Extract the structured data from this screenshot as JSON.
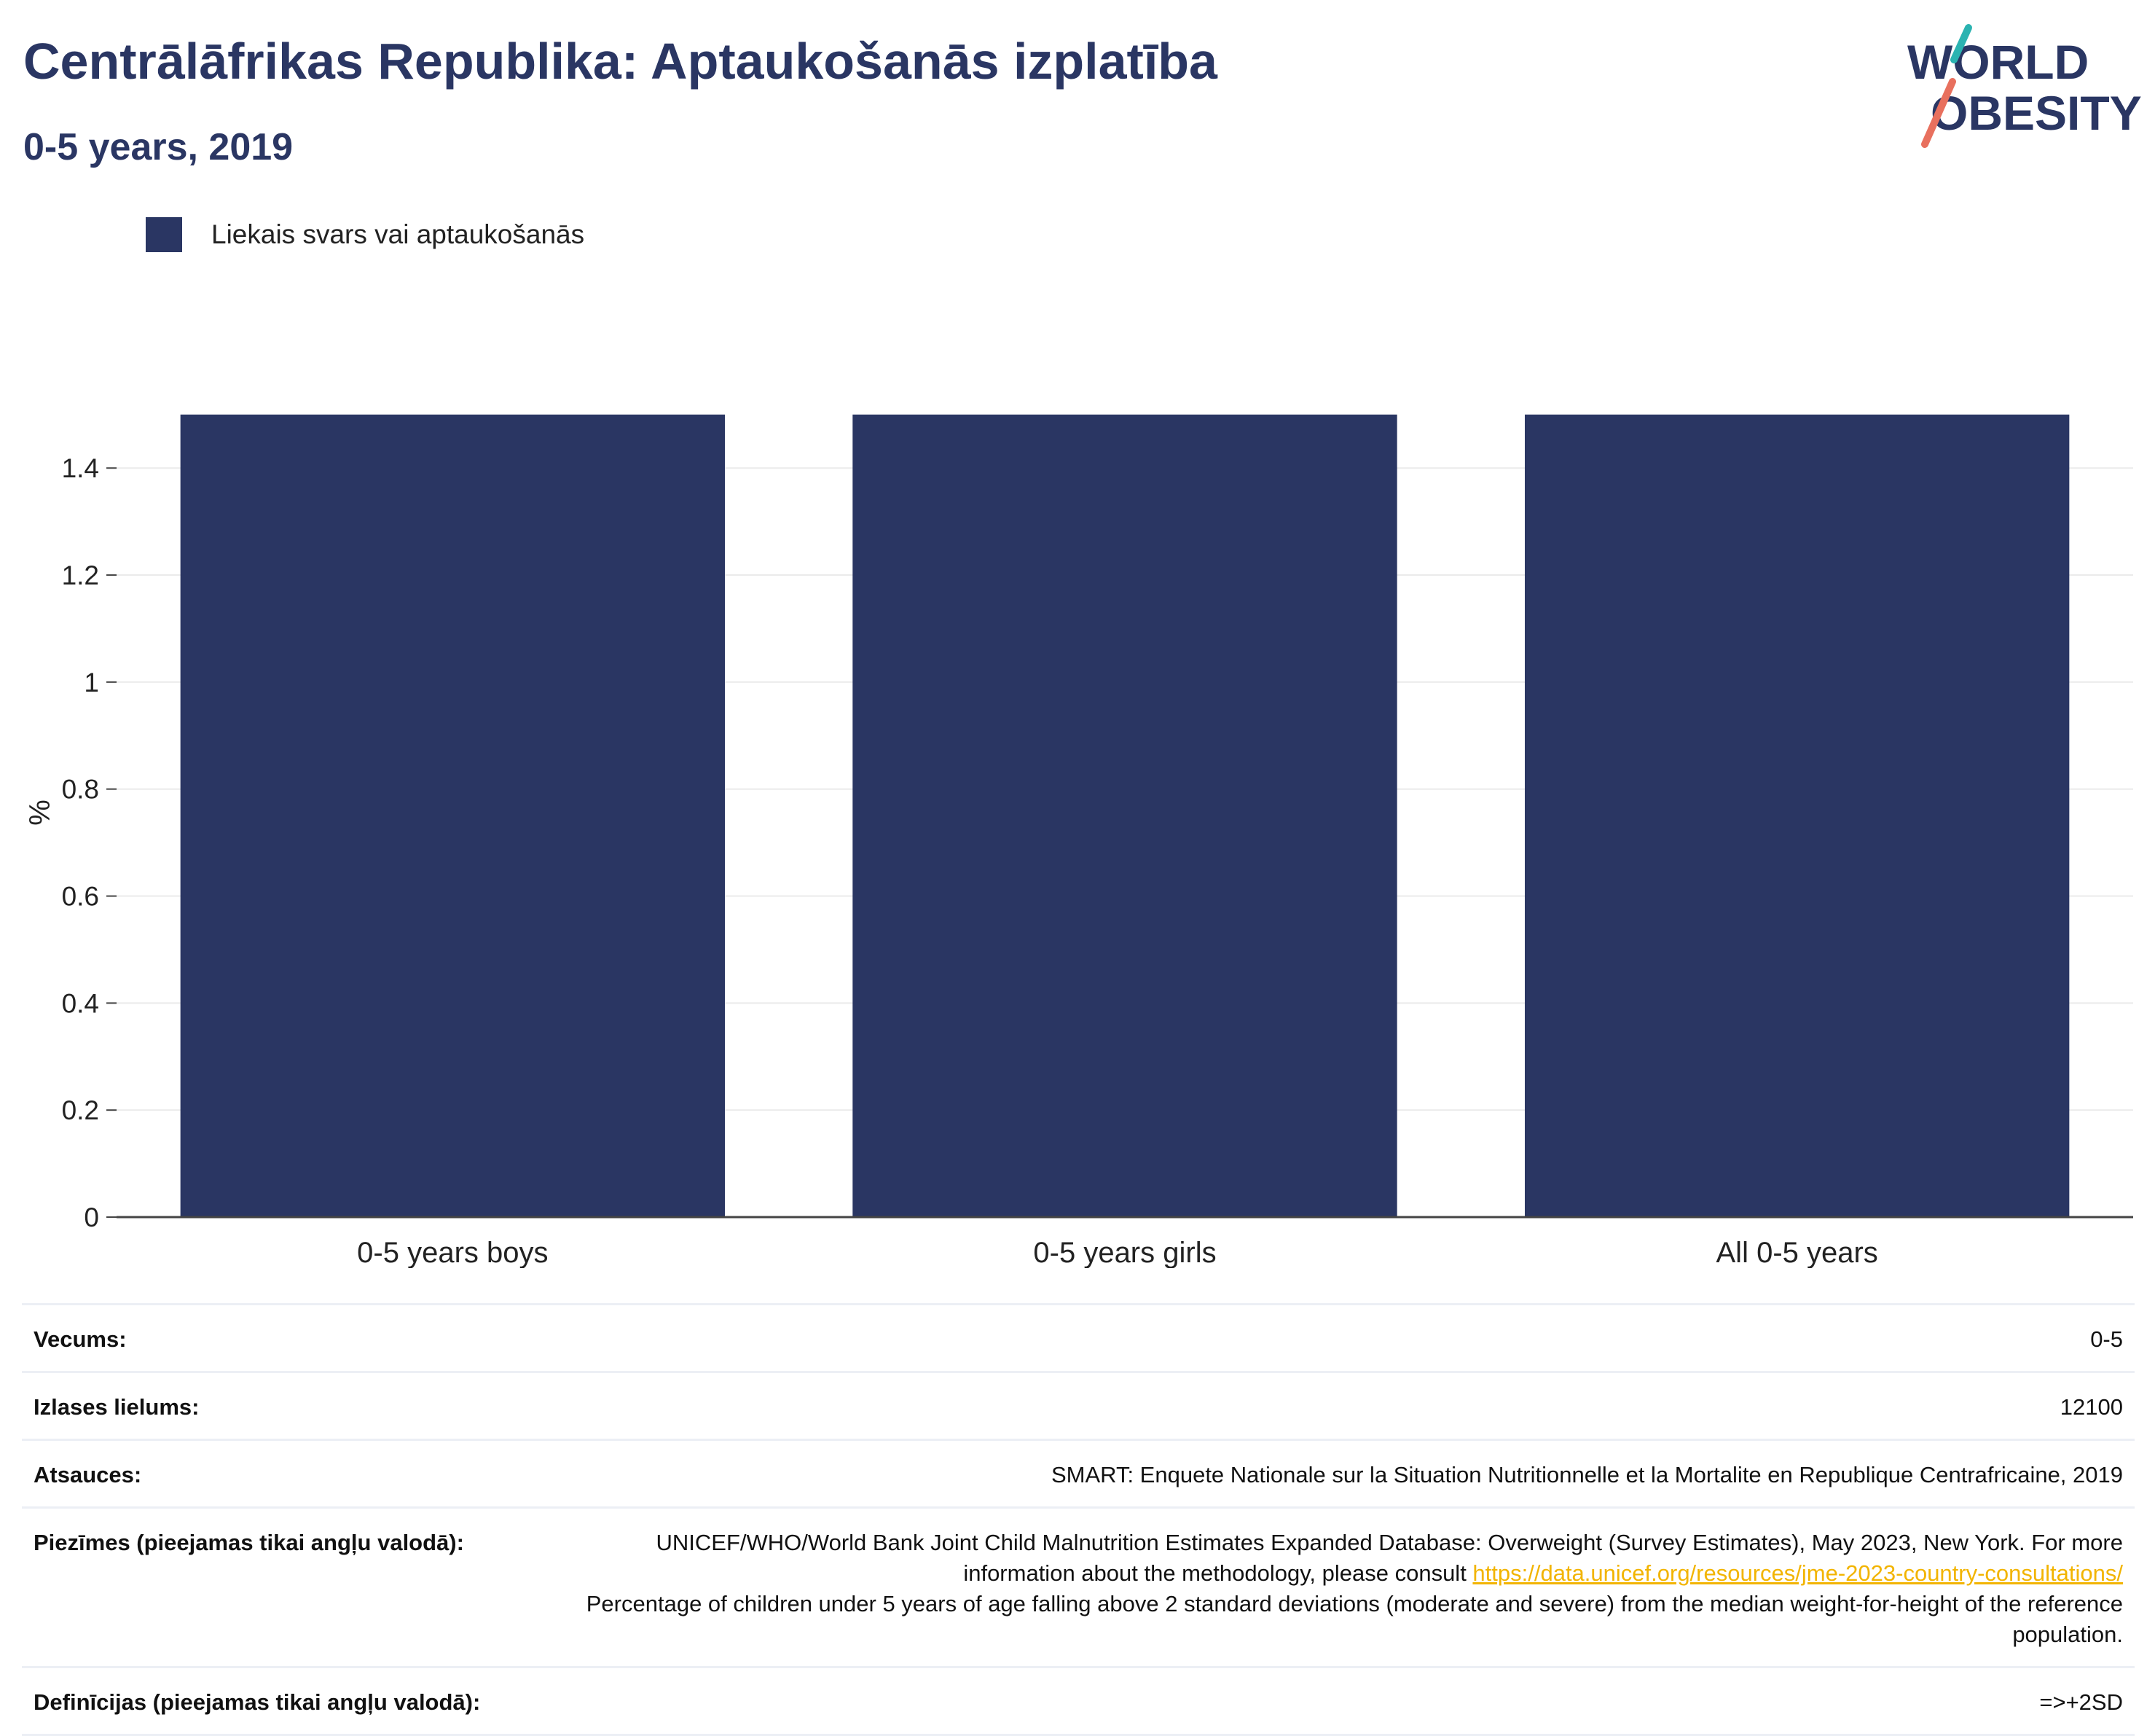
{
  "header": {
    "title": "Centrālāfrikas Republika: Aptaukošanās izplatība",
    "subtitle": "0-5 years, 2019"
  },
  "logo": {
    "line1": "WORLD",
    "line2": "OBESITY",
    "colors": {
      "text": "#2a3663",
      "teal_slash": "#2bb3b1",
      "coral_slash": "#e8705e"
    }
  },
  "legend": {
    "items": [
      {
        "label": "Liekais svars vai aptaukošanās",
        "color": "#2a3663"
      }
    ]
  },
  "chart_data": {
    "type": "bar",
    "categories": [
      "0-5 years boys",
      "0-5 years girls",
      "All 0-5 years"
    ],
    "series": [
      {
        "name": "Liekais svars vai aptaukošanās",
        "values": [
          1.5,
          1.5,
          1.5
        ],
        "color": "#2a3663"
      }
    ],
    "ylabel": "%",
    "xlabel": "",
    "ylim": [
      0,
      1.5
    ],
    "yticks": [
      0,
      0.2,
      0.4,
      0.6,
      0.8,
      1,
      1.2,
      1.4
    ],
    "ytick_labels": [
      "0",
      "0.2",
      "0.4",
      "0.6",
      "0.8",
      "1",
      "1.2",
      "1.4"
    ],
    "grid": true,
    "legend_position": "top-left"
  },
  "info": {
    "age": {
      "label": "Vecums:",
      "value": "0-5"
    },
    "sample": {
      "label": "Izlases lielums:",
      "value": "12100"
    },
    "references": {
      "label": "Atsauces:",
      "value": "SMART: Enquete Nationale sur la Situation Nutritionnelle et la Mortalite en Republique Centrafricaine, 2019"
    },
    "notes": {
      "label": "Piezīmes (pieejamas tikai angļu valodā):",
      "text_before": "UNICEF/WHO/World Bank Joint Child Malnutrition Estimates Expanded Database: Overweight (Survey Estimates), May 2023, New York. For more information about the methodology, please consult ",
      "link": "https://data.unicef.org/resources/jme-2023-country-consultations/",
      "text_after": "Percentage of children under 5 years of age falling above 2 standard deviations (moderate and severe) from the median weight-for-height of the reference population."
    },
    "definitions": {
      "label": "Definīcijas (pieejamas tikai angļu valodā):",
      "value": "=>+2SD"
    }
  }
}
